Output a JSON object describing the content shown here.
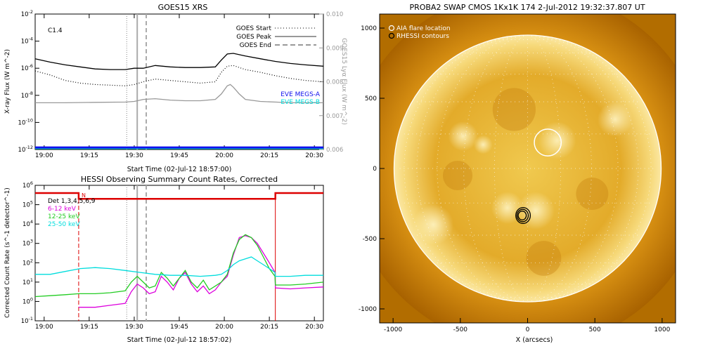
{
  "chart_data": [
    {
      "type": "line",
      "title": "GOES15 XRS",
      "xlabel": "Start Time (02-Jul-12 18:57:00)",
      "ylabel": "X-ray Flux (W m^-2)",
      "y2label": "GOES15 Lyα Flux (W m^-2)",
      "annotation": "C1.4",
      "x_ticks": [
        "19:00",
        "19:15",
        "19:30",
        "19:45",
        "20:00",
        "20:15",
        "20:30"
      ],
      "x_tick_minutes": [
        3,
        18,
        33,
        48,
        63,
        78,
        93
      ],
      "xlim_minutes": [
        0,
        96
      ],
      "ylim_log10": [
        -12,
        -2
      ],
      "y_ticks": [
        "10^-12",
        "10^-10",
        "10^-8",
        "10^-6",
        "10^-4",
        "10^-2"
      ],
      "y2lim": [
        0.006,
        0.01
      ],
      "y2_ticks": [
        "0.006",
        "0.007",
        "0.008",
        "0.009",
        "0.010"
      ],
      "vlines": [
        {
          "name": "GOES Start",
          "minute": 30.5,
          "style": "dotted"
        },
        {
          "name": "GOES Peak",
          "minute": 34.0,
          "style": "solid"
        },
        {
          "name": "GOES End",
          "minute": 37.0,
          "style": "dashed"
        }
      ],
      "legend_lines": [
        "GOES Start",
        "GOES Peak",
        "GOES End"
      ],
      "legend_eve": [
        {
          "label": "EVE MEGS-A",
          "color": "#1010ee"
        },
        {
          "label": "EVE MEGS-B",
          "color": "#00dddd"
        }
      ],
      "series": [
        {
          "name": "",
          "color": "#000000",
          "style": "solid",
          "x": [
            0,
            5,
            10,
            15,
            20,
            25,
            30,
            33,
            36,
            40,
            45,
            50,
            55,
            60,
            62,
            64,
            66,
            70,
            75,
            80,
            85,
            90,
            96
          ],
          "log10_values": [
            -5.3,
            -5.55,
            -5.75,
            -5.9,
            -6.05,
            -6.1,
            -6.1,
            -6.0,
            -6.0,
            -5.8,
            -5.9,
            -5.95,
            -5.95,
            -5.9,
            -5.4,
            -4.95,
            -4.9,
            -5.1,
            -5.3,
            -5.5,
            -5.65,
            -5.75,
            -5.85
          ]
        },
        {
          "name": "",
          "color": "#000000",
          "style": "dotted",
          "x": [
            0,
            5,
            10,
            15,
            20,
            25,
            30,
            33,
            36,
            40,
            45,
            50,
            55,
            60,
            62,
            64,
            66,
            70,
            75,
            80,
            85,
            90,
            96
          ],
          "log10_values": [
            -6.2,
            -6.5,
            -6.9,
            -7.1,
            -7.2,
            -7.25,
            -7.3,
            -7.2,
            -7.0,
            -6.8,
            -6.9,
            -7.0,
            -7.1,
            -7.0,
            -6.3,
            -5.85,
            -5.8,
            -6.1,
            -6.3,
            -6.55,
            -6.75,
            -6.9,
            -7.0
          ]
        },
        {
          "name": "",
          "color": "#999999",
          "style": "solid",
          "x": [
            0,
            10,
            20,
            30,
            33,
            36,
            40,
            45,
            50,
            55,
            60,
            62,
            64,
            65,
            66,
            68,
            70,
            75,
            80,
            85,
            90,
            96
          ],
          "log10_values": [
            -8.55,
            -8.55,
            -8.52,
            -8.5,
            -8.45,
            -8.3,
            -8.25,
            -8.35,
            -8.4,
            -8.4,
            -8.3,
            -7.9,
            -7.3,
            -7.2,
            -7.4,
            -7.9,
            -8.3,
            -8.45,
            -8.5,
            -8.55,
            -8.55,
            -8.55
          ]
        },
        {
          "name": "",
          "color": "#1010ee",
          "style": "thick",
          "x": [
            0,
            96
          ],
          "log10_values": [
            -11.85,
            -11.85
          ]
        },
        {
          "name": "",
          "color": "#00dddd",
          "style": "thin",
          "x": [
            0,
            96
          ],
          "log10_values": [
            -11.95,
            -11.95
          ]
        }
      ]
    },
    {
      "type": "line",
      "title": "HESSI Observing Summary Count Rates, Corrected",
      "xlabel": "Start Time (02-Jul-12 18:57:02)",
      "ylabel": "Corrected Count Rate (s^-1 detector^-1)",
      "x_ticks": [
        "19:00",
        "19:15",
        "19:30",
        "19:45",
        "20:00",
        "20:15",
        "20:30"
      ],
      "x_tick_minutes": [
        3,
        18,
        33,
        48,
        63,
        78,
        93
      ],
      "xlim_minutes": [
        0,
        96
      ],
      "ylim_log10": [
        -1,
        6
      ],
      "y_ticks": [
        "10^-1",
        "10^0",
        "10^1",
        "10^2",
        "10^3",
        "10^4",
        "10^5",
        "10^6"
      ],
      "flag_label": "N",
      "legend": [
        {
          "label": "Det 1,3,4,5,6,9",
          "color": "#000000"
        },
        {
          "label": "6-12 keV",
          "color": "#dd00dd"
        },
        {
          "label": "12-25 keV",
          "color": "#22cc22"
        },
        {
          "label": "25-50 keV",
          "color": "#00dddd"
        }
      ],
      "vlines": [
        {
          "name": "GOES Start",
          "minute": 30.5,
          "style": "dotted"
        },
        {
          "name": "GOES Peak",
          "minute": 34.0,
          "style": "solid"
        },
        {
          "name": "GOES End",
          "minute": 37.0,
          "style": "dashed"
        },
        {
          "name": "night",
          "minute": 14.5,
          "style": "red-dashed"
        },
        {
          "name": "night-end",
          "minute": 80.0,
          "style": "red-solid"
        }
      ],
      "series": [
        {
          "name": "",
          "color": "#dd0000",
          "style": "step",
          "x": [
            0,
            14.5,
            14.5,
            80,
            80,
            96
          ],
          "log10_values": [
            5.6,
            5.6,
            5.3,
            5.3,
            5.6,
            5.6
          ]
        },
        {
          "name": "6-12 keV",
          "color": "#dd00dd",
          "style": "solid",
          "x": [
            14.5,
            20,
            25,
            30,
            32,
            34,
            36,
            38,
            40,
            42,
            44,
            46,
            48,
            50,
            52,
            54,
            56,
            58,
            60,
            62,
            64,
            66,
            68,
            70,
            72,
            74,
            76,
            78,
            79.9,
            80,
            85,
            90,
            96
          ],
          "log10_values": [
            -0.3,
            -0.3,
            -0.2,
            -0.1,
            0.5,
            0.9,
            0.7,
            0.4,
            0.5,
            1.3,
            1.0,
            0.6,
            1.2,
            1.5,
            0.9,
            0.5,
            0.8,
            0.4,
            0.6,
            1.0,
            1.3,
            2.4,
            3.3,
            3.4,
            3.3,
            3.0,
            2.5,
            2.0,
            1.5,
            0.7,
            0.65,
            0.7,
            0.75
          ]
        },
        {
          "name": "12-25 keV",
          "color": "#22cc22",
          "style": "solid",
          "x": [
            0,
            5,
            10,
            14.5,
            20,
            25,
            30,
            32,
            34,
            36,
            38,
            40,
            42,
            44,
            46,
            48,
            50,
            52,
            54,
            56,
            58,
            60,
            62,
            64,
            66,
            68,
            70,
            72,
            74,
            76,
            78,
            79.9,
            80,
            85,
            90,
            96
          ],
          "log10_values": [
            0.25,
            0.3,
            0.35,
            0.4,
            0.4,
            0.45,
            0.55,
            1.0,
            1.3,
            1.0,
            0.7,
            0.8,
            1.5,
            1.2,
            0.8,
            1.2,
            1.6,
            1.0,
            0.7,
            1.1,
            0.6,
            0.8,
            1.0,
            1.4,
            2.5,
            3.2,
            3.45,
            3.3,
            2.9,
            2.3,
            1.7,
            1.3,
            0.85,
            0.85,
            0.9,
            1.0
          ]
        },
        {
          "name": "25-50 keV",
          "color": "#00dddd",
          "style": "solid",
          "x": [
            0,
            5,
            10,
            15,
            20,
            25,
            30,
            35,
            40,
            45,
            50,
            55,
            60,
            62,
            64,
            66,
            68,
            70,
            72,
            74,
            76,
            78,
            79.9,
            80,
            85,
            90,
            96
          ],
          "log10_values": [
            1.4,
            1.4,
            1.55,
            1.7,
            1.75,
            1.7,
            1.6,
            1.5,
            1.4,
            1.35,
            1.35,
            1.3,
            1.35,
            1.4,
            1.6,
            1.9,
            2.1,
            2.2,
            2.3,
            2.1,
            1.9,
            1.7,
            1.5,
            1.3,
            1.3,
            1.35,
            1.35
          ]
        }
      ]
    },
    {
      "type": "scatter",
      "title": "PROBA2 SWAP CMOS 1Kx1K 174   2-Jul-2012 19:32:37.807 UT",
      "xlabel": "X (arcsecs)",
      "ylabel": "",
      "xlim": [
        -1100,
        1100
      ],
      "ylim": [
        -1100,
        1100
      ],
      "x_ticks": [
        -1000,
        -500,
        0,
        500,
        1000
      ],
      "y_ticks": [
        -1000,
        -500,
        0,
        500,
        1000
      ],
      "solar_limb_radius_arcsec": 950,
      "legend": [
        {
          "label": "AIA flare location",
          "symbol": "white-circle"
        },
        {
          "label": "RHESSI contours",
          "symbol": "black-circle"
        }
      ],
      "aia_flare_location": {
        "x": 150,
        "y": 185,
        "radius_arcsec": 100
      },
      "rhessi_contours": {
        "x": -40,
        "y": -335,
        "radii_arcsec": [
          30,
          42,
          54
        ]
      },
      "colors": {
        "background": "#b26d00",
        "disk_center": "#f3d86b",
        "disk_edge": "#d79a18",
        "limb": "#ffffff"
      }
    }
  ]
}
